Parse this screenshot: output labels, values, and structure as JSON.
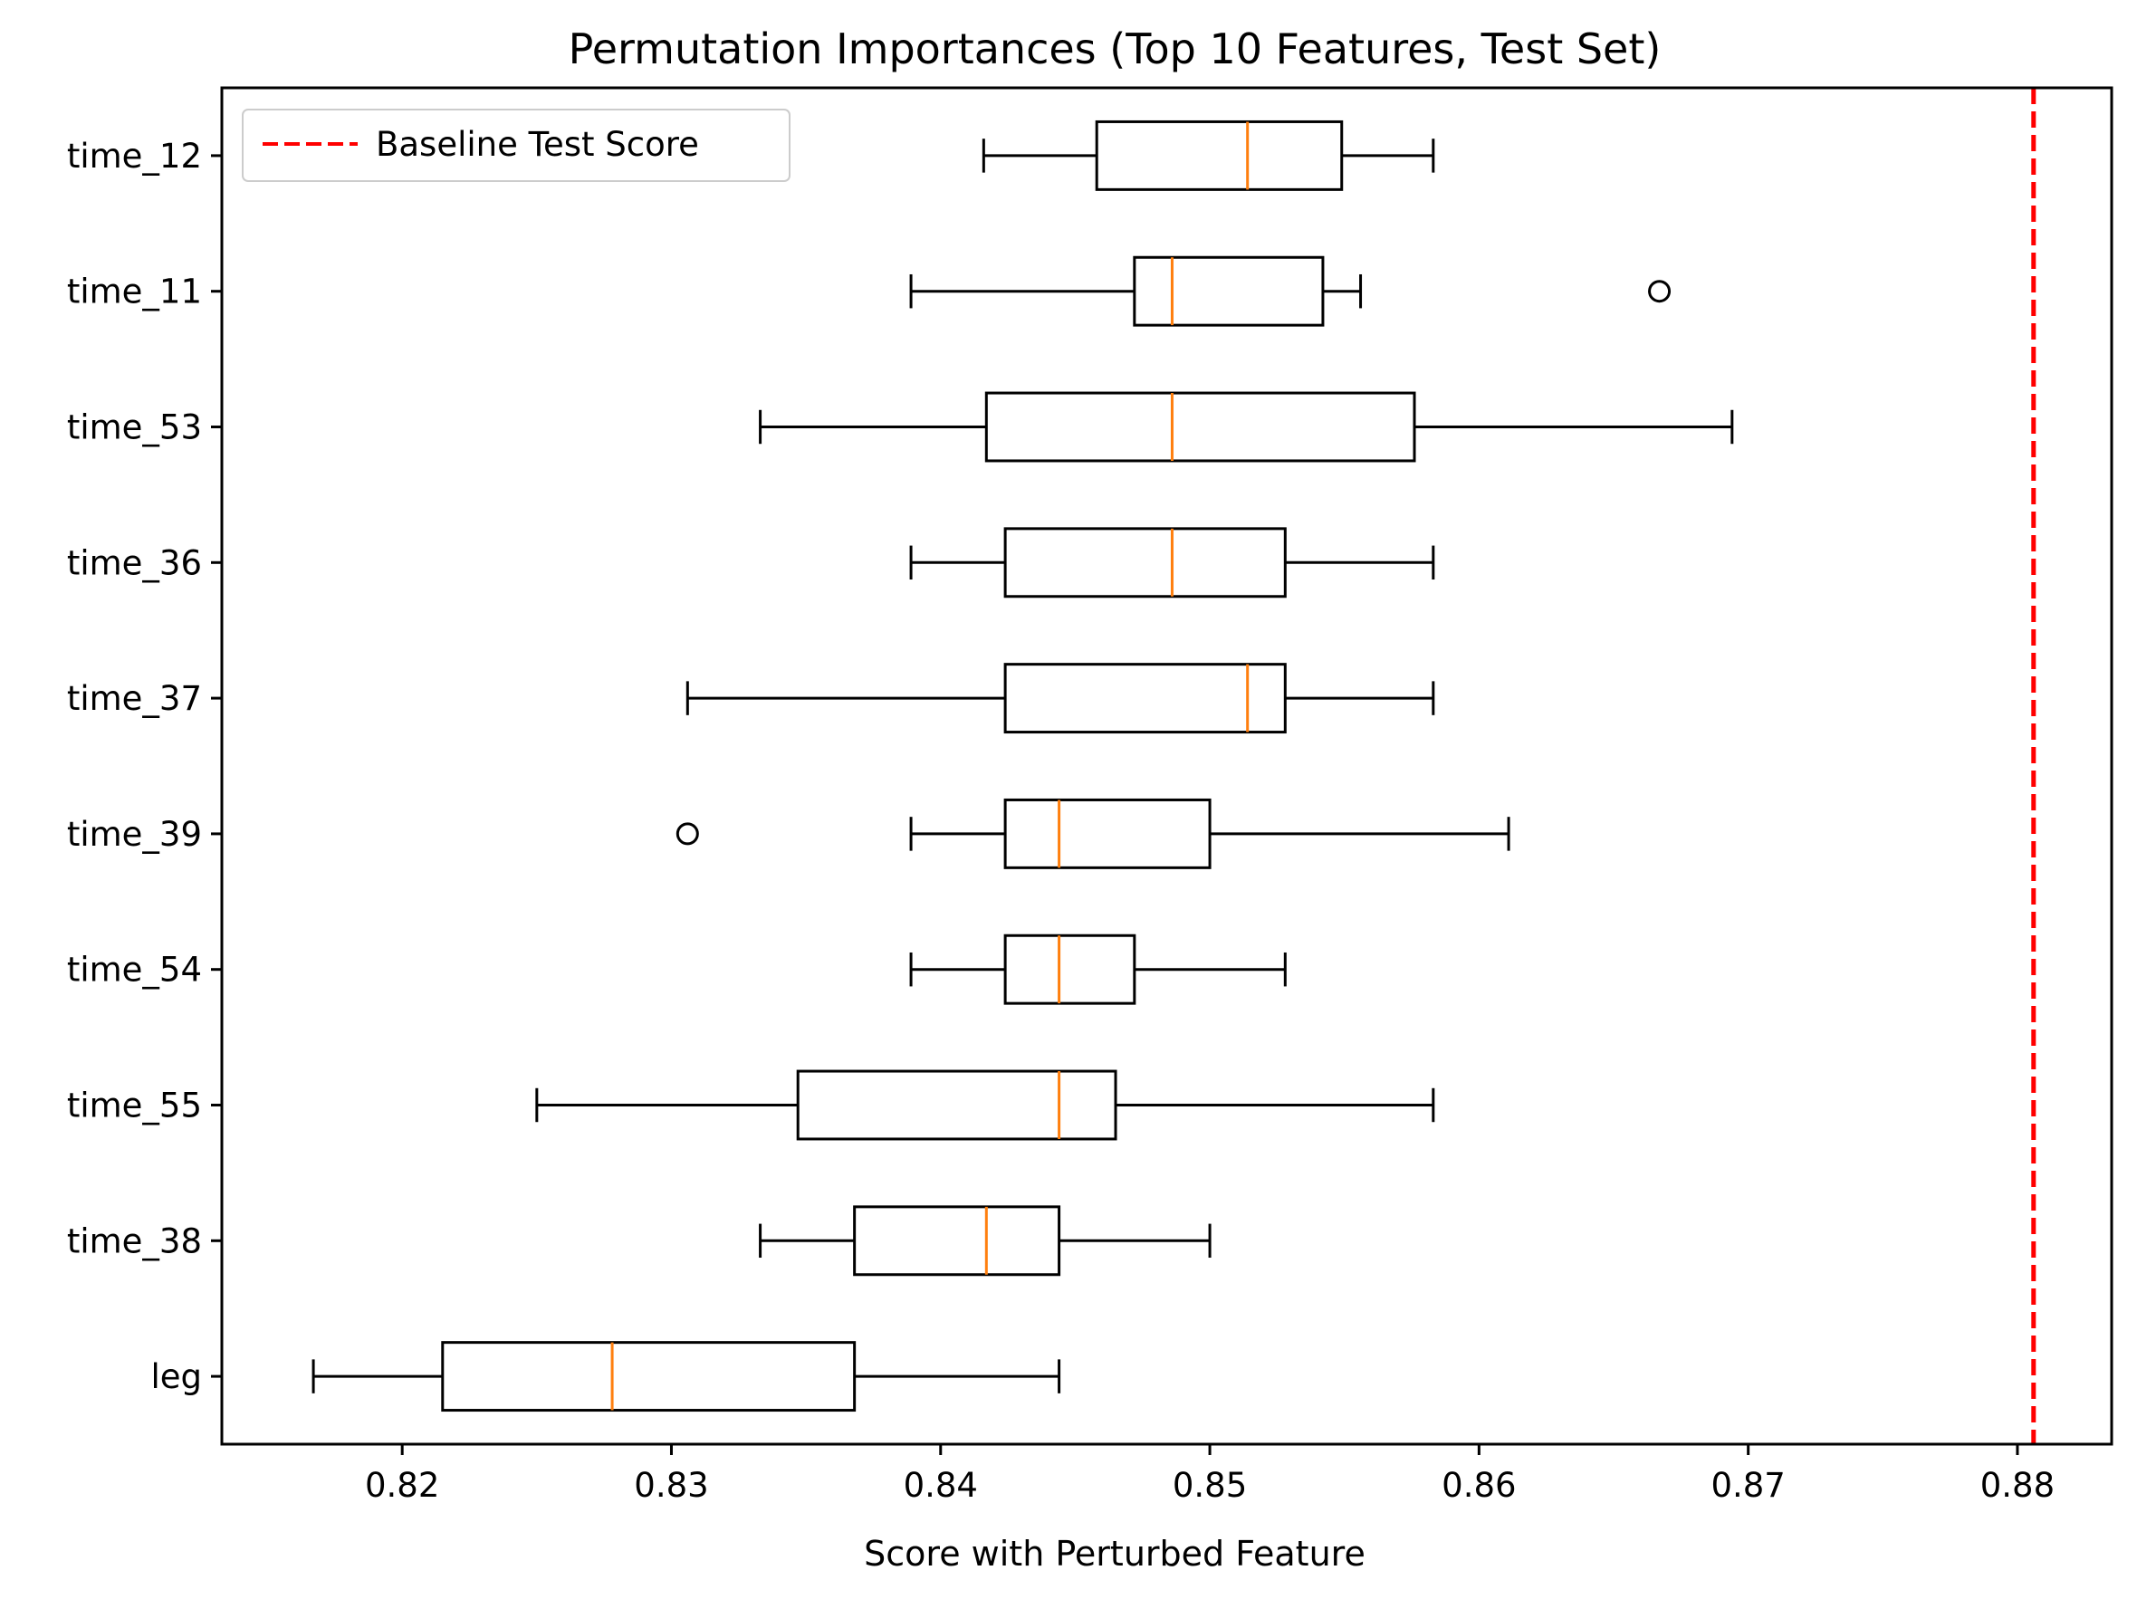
{
  "chart_data": {
    "type": "boxplot",
    "orientation": "horizontal",
    "title": "Permutation Importances (Top 10 Features, Test Set)",
    "xlabel": "Score with Perturbed Feature",
    "ylabel": "",
    "xlim": [
      0.8133,
      0.8835
    ],
    "xticks": [
      0.82,
      0.83,
      0.84,
      0.85,
      0.86,
      0.87,
      0.88
    ],
    "xtick_labels": [
      "0.82",
      "0.83",
      "0.84",
      "0.85",
      "0.86",
      "0.87",
      "0.88"
    ],
    "categories": [
      "time_12",
      "time_11",
      "time_53",
      "time_36",
      "time_37",
      "time_39",
      "time_54",
      "time_55",
      "time_38",
      "leg"
    ],
    "boxes": [
      {
        "label": "time_12",
        "whislo": 0.8416,
        "q1": 0.8458,
        "med": 0.8514,
        "q3": 0.8549,
        "whishi": 0.8583,
        "fliers": []
      },
      {
        "label": "time_11",
        "whislo": 0.8389,
        "q1": 0.8472,
        "med": 0.8486,
        "q3": 0.8542,
        "whishi": 0.8556,
        "fliers": [
          0.8667
        ]
      },
      {
        "label": "time_53",
        "whislo": 0.8333,
        "q1": 0.8417,
        "med": 0.8486,
        "q3": 0.8576,
        "whishi": 0.8694,
        "fliers": []
      },
      {
        "label": "time_36",
        "whislo": 0.8389,
        "q1": 0.8424,
        "med": 0.8486,
        "q3": 0.8528,
        "whishi": 0.8583,
        "fliers": []
      },
      {
        "label": "time_37",
        "whislo": 0.8306,
        "q1": 0.8424,
        "med": 0.8514,
        "q3": 0.8528,
        "whishi": 0.8583,
        "fliers": []
      },
      {
        "label": "time_39",
        "whislo": 0.8389,
        "q1": 0.8424,
        "med": 0.8444,
        "q3": 0.85,
        "whishi": 0.8611,
        "fliers": [
          0.8306
        ]
      },
      {
        "label": "time_54",
        "whislo": 0.8389,
        "q1": 0.8424,
        "med": 0.8444,
        "q3": 0.8472,
        "whishi": 0.8528,
        "fliers": []
      },
      {
        "label": "time_55",
        "whislo": 0.825,
        "q1": 0.8347,
        "med": 0.8444,
        "q3": 0.8465,
        "whishi": 0.8583,
        "fliers": []
      },
      {
        "label": "time_38",
        "whislo": 0.8333,
        "q1": 0.8368,
        "med": 0.8417,
        "q3": 0.8444,
        "whishi": 0.85,
        "fliers": []
      },
      {
        "label": "leg",
        "whislo": 0.8167,
        "q1": 0.8215,
        "med": 0.8278,
        "q3": 0.8368,
        "whishi": 0.8444,
        "fliers": []
      }
    ],
    "baseline": {
      "label": "Baseline Test Score",
      "value": 0.8806,
      "color": "#ff0000",
      "style": "dashed"
    },
    "legend": {
      "position": "top-left",
      "entries": [
        "Baseline Test Score"
      ]
    },
    "grid": false,
    "colors": {
      "box": "#000000",
      "median": "#ff7f0e",
      "baseline": "#ff0000"
    }
  }
}
